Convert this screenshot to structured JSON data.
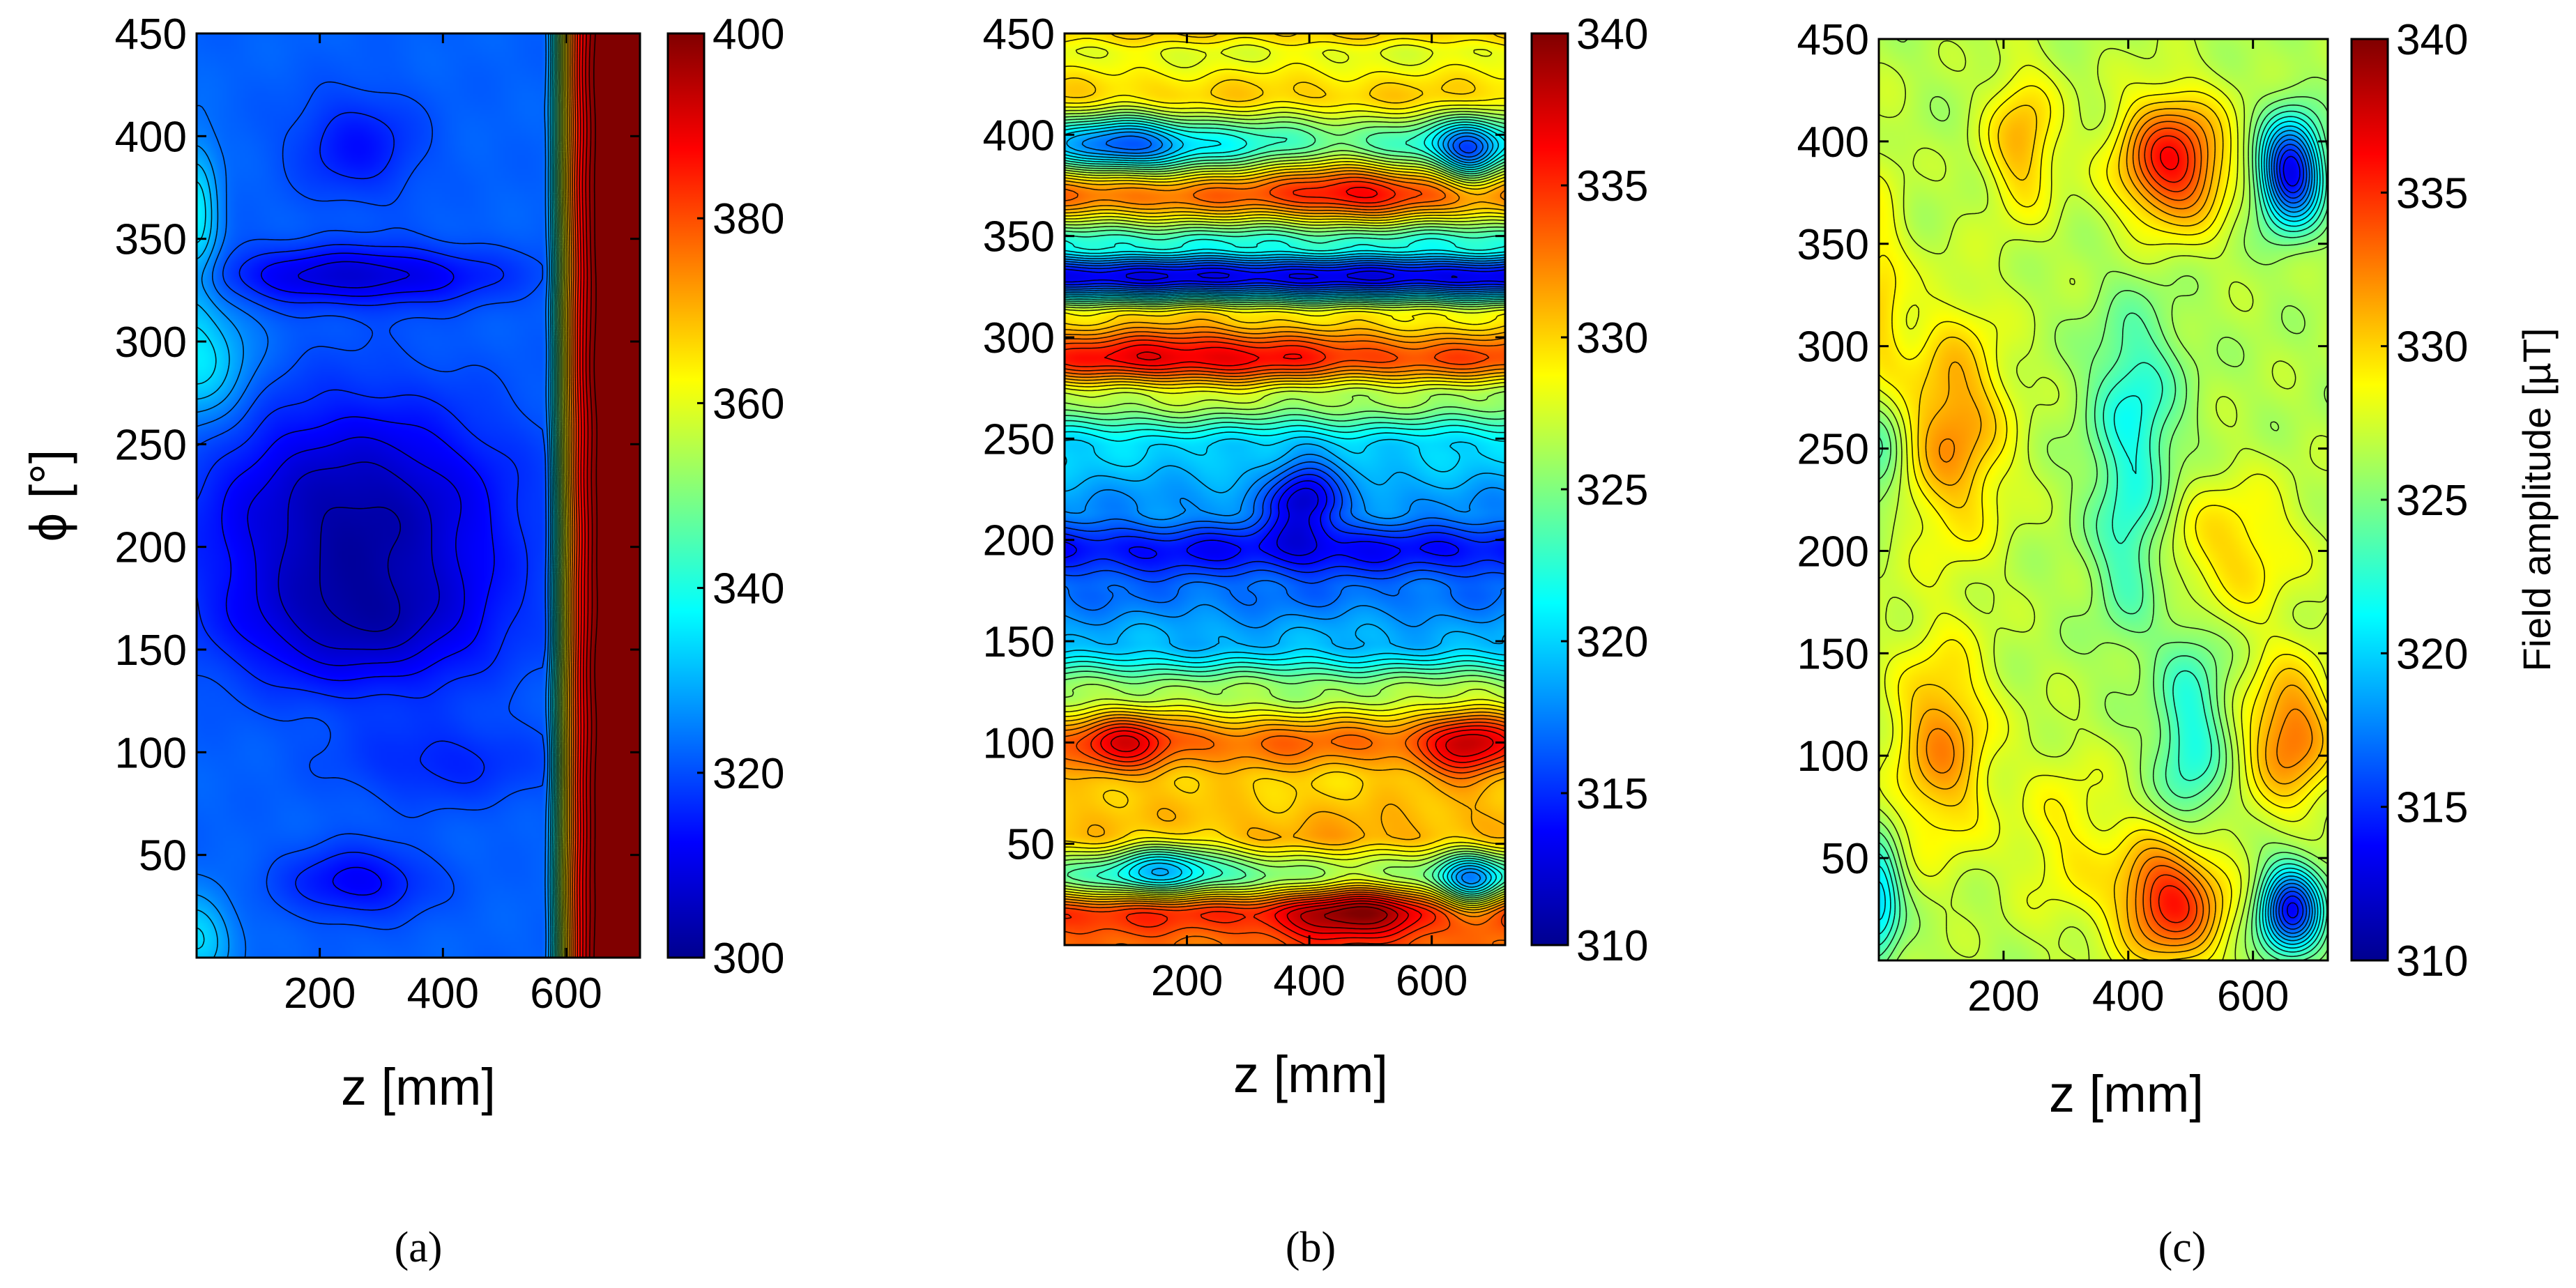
{
  "chart_data": [
    {
      "type": "heatmap",
      "panel_label": "(a)",
      "xlabel": "z [mm]",
      "ylabel": "ϕ [°]",
      "xlim": [
        0,
        720
      ],
      "ylim": [
        0,
        450
      ],
      "x_ticks": [
        200,
        400,
        600
      ],
      "y_ticks": [
        50,
        100,
        150,
        200,
        250,
        300,
        350,
        400,
        450
      ],
      "colorbar": {
        "range": [
          300,
          400
        ],
        "ticks": [
          300,
          320,
          340,
          360,
          380,
          400
        ],
        "label": ""
      },
      "base_value": 322,
      "features": [
        {
          "z": 260,
          "phi": 215,
          "value": 303,
          "sz": 170,
          "sphi": 38
        },
        {
          "z": 270,
          "phi": 160,
          "value": 310,
          "sz": 150,
          "sphi": 22
        },
        {
          "z": 260,
          "phi": 332,
          "value": 308,
          "sz": 160,
          "sphi": 10
        },
        {
          "z": 260,
          "phi": 395,
          "value": 314,
          "sz": 70,
          "sphi": 18
        },
        {
          "z": 260,
          "phi": 37,
          "value": 312,
          "sz": 80,
          "sphi": 12
        },
        {
          "z": 0,
          "phi": 290,
          "value": 336,
          "sz": 60,
          "sphi": 22
        },
        {
          "z": 0,
          "phi": 360,
          "value": 336,
          "sz": 25,
          "sphi": 25
        },
        {
          "z": 0,
          "phi": 10,
          "value": 334,
          "sz": 40,
          "sphi": 15
        },
        {
          "z": 400,
          "phi": 95,
          "value": 316,
          "sz": 120,
          "sphi": 15
        }
      ],
      "edge_ramp": {
        "start_z": 560,
        "scale_z": 45,
        "amplitude": 80
      }
    },
    {
      "type": "heatmap",
      "panel_label": "(b)",
      "xlabel": "z [mm]",
      "ylabel": "",
      "xlim": [
        0,
        720
      ],
      "ylim": [
        0,
        450
      ],
      "x_ticks": [
        200,
        400,
        600
      ],
      "y_ticks": [
        50,
        100,
        150,
        200,
        250,
        300,
        350,
        400,
        450
      ],
      "colorbar": {
        "range": [
          310,
          340
        ],
        "ticks": [
          310,
          315,
          320,
          325,
          330,
          335,
          340
        ],
        "label": ""
      },
      "base_value": 323,
      "band_profile": [
        [
          0,
          333
        ],
        [
          15,
          335
        ],
        [
          35,
          324
        ],
        [
          55,
          331
        ],
        [
          80,
          330
        ],
        [
          100,
          333
        ],
        [
          125,
          326
        ],
        [
          150,
          319
        ],
        [
          175,
          317
        ],
        [
          195,
          314
        ],
        [
          215,
          318
        ],
        [
          245,
          320
        ],
        [
          270,
          326
        ],
        [
          290,
          334
        ],
        [
          310,
          329
        ],
        [
          330,
          313
        ],
        [
          345,
          322
        ],
        [
          370,
          333
        ],
        [
          395,
          322
        ],
        [
          420,
          330
        ],
        [
          440,
          328
        ],
        [
          450,
          330
        ]
      ],
      "features": [
        {
          "z": 390,
          "phi": 220,
          "value": -6,
          "sz": 40,
          "sphi": 15
        },
        {
          "z": 470,
          "phi": 20,
          "value": 5,
          "sz": 80,
          "sphi": 15
        },
        {
          "z": 460,
          "phi": 380,
          "value": 4,
          "sz": 80,
          "sphi": 15
        },
        {
          "z": 660,
          "phi": 390,
          "value": -7,
          "sz": 35,
          "sphi": 12
        },
        {
          "z": 660,
          "phi": 30,
          "value": -7,
          "sz": 35,
          "sphi": 12
        },
        {
          "z": 660,
          "phi": 100,
          "value": 5,
          "sz": 50,
          "sphi": 15
        },
        {
          "z": 100,
          "phi": 100,
          "value": 4,
          "sz": 50,
          "sphi": 12
        },
        {
          "z": 200,
          "phi": 290,
          "value": 3,
          "sz": 150,
          "sphi": 15
        },
        {
          "z": 160,
          "phi": 40,
          "value": -5,
          "sz": 60,
          "sphi": 10
        },
        {
          "z": 100,
          "phi": 395,
          "value": -6,
          "sz": 70,
          "sphi": 10
        }
      ]
    },
    {
      "type": "heatmap",
      "panel_label": "(c)",
      "xlabel": "z [mm]",
      "ylabel": "",
      "xlim": [
        0,
        720
      ],
      "ylim": [
        0,
        450
      ],
      "x_ticks": [
        200,
        400,
        600
      ],
      "y_ticks": [
        50,
        100,
        150,
        200,
        250,
        300,
        350,
        400,
        450
      ],
      "colorbar": {
        "range": [
          310,
          340
        ],
        "ticks": [
          310,
          315,
          320,
          325,
          330,
          335,
          340
        ],
        "label": "Field amplitude  [µT]"
      },
      "base_value": 326.5,
      "features": [
        {
          "z": 470,
          "phi": 390,
          "value": 336,
          "sz": 60,
          "sphi": 22
        },
        {
          "z": 470,
          "phi": 30,
          "value": 336,
          "sz": 60,
          "sphi": 22
        },
        {
          "z": 660,
          "phi": 385,
          "value": 313,
          "sz": 35,
          "sphi": 18
        },
        {
          "z": 660,
          "phi": 25,
          "value": 314,
          "sz": 35,
          "sphi": 15
        },
        {
          "z": 660,
          "phi": 110,
          "value": 333,
          "sz": 50,
          "sphi": 25
        },
        {
          "z": 410,
          "phi": 270,
          "value": 322,
          "sz": 50,
          "sphi": 35
        },
        {
          "z": 500,
          "phi": 110,
          "value": 322,
          "sz": 40,
          "sphi": 40
        },
        {
          "z": 400,
          "phi": 200,
          "value": 323,
          "sz": 40,
          "sphi": 30
        },
        {
          "z": 120,
          "phi": 260,
          "value": 332,
          "sz": 60,
          "sphi": 40
        },
        {
          "z": 100,
          "phi": 105,
          "value": 332,
          "sz": 55,
          "sphi": 35
        },
        {
          "z": 0,
          "phi": 250,
          "value": 321,
          "sz": 30,
          "sphi": 25
        },
        {
          "z": 0,
          "phi": 30,
          "value": 320,
          "sz": 25,
          "sphi": 20
        },
        {
          "z": 0,
          "phi": 300,
          "value": 330,
          "sz": 30,
          "sphi": 60
        },
        {
          "z": 230,
          "phi": 400,
          "value": 331,
          "sz": 40,
          "sphi": 25
        },
        {
          "z": 560,
          "phi": 200,
          "value": 330,
          "sz": 80,
          "sphi": 25
        },
        {
          "z": 300,
          "phi": 60,
          "value": 329,
          "sz": 60,
          "sphi": 30
        }
      ]
    }
  ]
}
